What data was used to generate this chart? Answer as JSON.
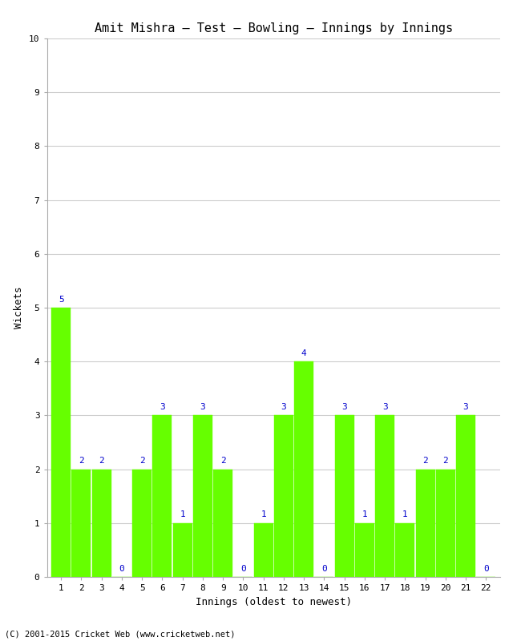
{
  "title": "Amit Mishra – Test – Bowling – Innings by Innings",
  "xlabel": "Innings (oldest to newest)",
  "ylabel": "Wickets",
  "innings": [
    1,
    2,
    3,
    4,
    5,
    6,
    7,
    8,
    9,
    10,
    11,
    12,
    13,
    14,
    15,
    16,
    17,
    18,
    19,
    20,
    21,
    22
  ],
  "wickets": [
    5,
    2,
    2,
    0,
    2,
    3,
    1,
    3,
    2,
    0,
    1,
    3,
    4,
    0,
    3,
    1,
    3,
    1,
    2,
    2,
    3,
    0
  ],
  "bar_color": "#66ff00",
  "bar_edge_color": "#66ff00",
  "label_color": "#0000cc",
  "ylim": [
    0,
    10
  ],
  "yticks": [
    0,
    1,
    2,
    3,
    4,
    5,
    6,
    7,
    8,
    9,
    10
  ],
  "grid_color": "#cccccc",
  "bg_color": "#ffffff",
  "title_fontsize": 11,
  "label_fontsize": 9,
  "tick_fontsize": 8,
  "annotation_fontsize": 8,
  "footer": "(C) 2001-2015 Cricket Web (www.cricketweb.net)",
  "footer_color": "#000000"
}
